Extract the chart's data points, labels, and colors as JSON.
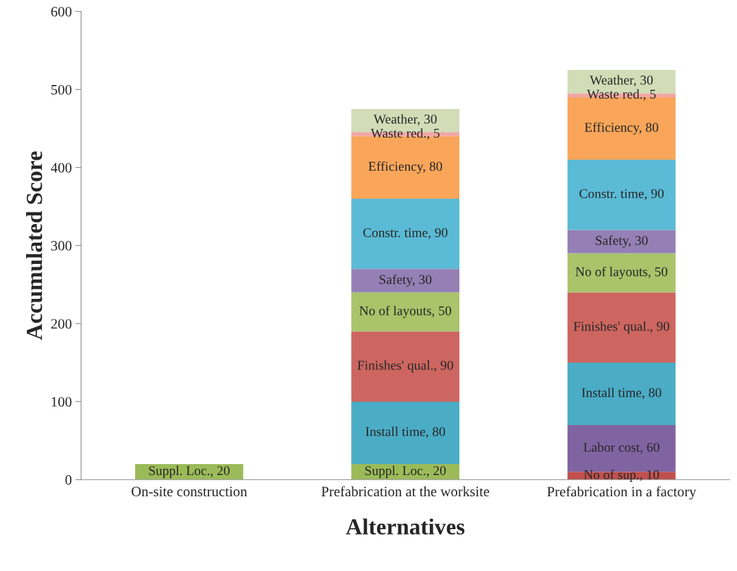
{
  "chart_data": {
    "type": "bar",
    "stacked": true,
    "xlabel": "Alternatives",
    "ylabel": "Accumulated Score",
    "categories": [
      "On-site construction",
      "Prefabrication at the worksite",
      "Prefabrication in a factory"
    ],
    "ylim": [
      0,
      600
    ],
    "yticks": [
      0,
      100,
      200,
      300,
      400,
      500,
      600
    ],
    "grid": false,
    "legend": false,
    "series": [
      {
        "color": "#c0504d",
        "values": [
          null,
          null,
          10
        ],
        "value_labels": [
          null,
          null,
          "No of sup., 10"
        ]
      },
      {
        "color": "#8064a2",
        "values": [
          null,
          null,
          60
        ],
        "value_labels": [
          null,
          null,
          "Labor cost, 60"
        ]
      },
      {
        "color": "#9bbb59",
        "values": [
          20,
          20,
          null
        ],
        "value_labels": [
          "Suppl. Loc., 20",
          "Suppl. Loc., 20",
          null
        ]
      },
      {
        "color": "#4bacc6",
        "values": [
          null,
          80,
          80
        ],
        "value_labels": [
          null,
          "Install time, 80",
          "Install time, 80"
        ]
      },
      {
        "color": "#cd6660",
        "values": [
          null,
          90,
          90
        ],
        "value_labels": [
          null,
          "Finishes' qual., 90",
          "Finishes' qual., 90"
        ]
      },
      {
        "color": "#a9c46a",
        "values": [
          null,
          50,
          50
        ],
        "value_labels": [
          null,
          "No of layouts, 50",
          "No of layouts, 50"
        ]
      },
      {
        "color": "#9580b5",
        "values": [
          null,
          30,
          30
        ],
        "value_labels": [
          null,
          "Safety, 30",
          "Safety, 30"
        ]
      },
      {
        "color": "#5bbad5",
        "values": [
          null,
          90,
          90
        ],
        "value_labels": [
          null,
          "Constr. time, 90",
          "Constr. time, 90"
        ]
      },
      {
        "color": "#f9a65a",
        "values": [
          null,
          80,
          80
        ],
        "value_labels": [
          null,
          "Efficiency, 80",
          "Efficiency, 80"
        ]
      },
      {
        "color": "#f1a7a5",
        "values": [
          null,
          5,
          5
        ],
        "value_labels": [
          null,
          "Waste red., 5",
          "Waste red., 5"
        ]
      },
      {
        "color": "#d2ddb8",
        "values": [
          null,
          30,
          30
        ],
        "value_labels": [
          null,
          "Weather, 30",
          "Weather, 30"
        ]
      }
    ]
  }
}
